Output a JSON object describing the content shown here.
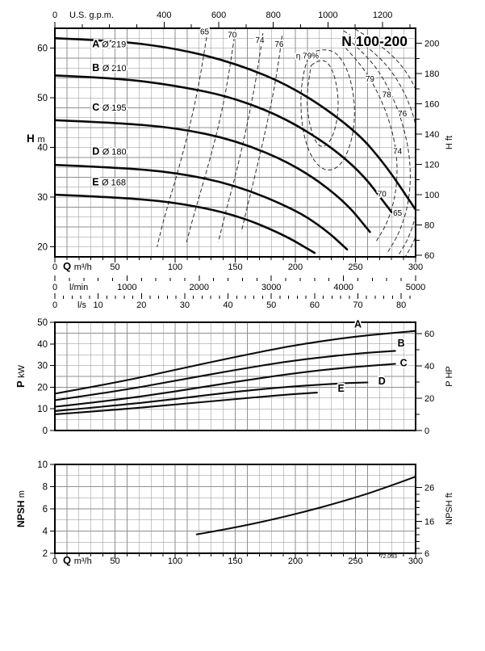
{
  "title": "N 100-200",
  "figure_code": "72.033",
  "colors": {
    "background": "#ffffff",
    "curve": "#0a0a0a",
    "grid": "#8f8f8f",
    "frame": "#000000",
    "contour": "#2a2a2a"
  },
  "chart_data": [
    {
      "type": "line",
      "name": "head-capacity",
      "title": "N 100-200",
      "x": {
        "label": "Q",
        "unit": "m³/h",
        "range": [
          0,
          300
        ],
        "ticks": [
          0,
          50,
          100,
          150,
          200,
          250,
          300
        ],
        "minor_step": 10
      },
      "x_top": {
        "label": "U.S. g.p.m.",
        "ticks": [
          0,
          400,
          600,
          800,
          1000,
          1200
        ],
        "minor_step": 100,
        "max": 1300,
        "to_primary": 0.22712
      },
      "x_bottom2": {
        "label": "l/min",
        "ticks": [
          0,
          1000,
          2000,
          3000,
          4000,
          5000
        ],
        "minor_step": 200,
        "max": 5000,
        "to_primary": 0.06
      },
      "x_bottom3": {
        "label": "l/s",
        "ticks": [
          0,
          10,
          20,
          30,
          40,
          50,
          60,
          70,
          80
        ],
        "minor_step": 2,
        "max": 82,
        "to_primary": 3.6
      },
      "y": {
        "label": "H",
        "unit": "m",
        "range": [
          18,
          64
        ],
        "ticks": [
          20,
          30,
          40,
          50,
          60
        ],
        "grid_step": 2
      },
      "y_right": {
        "label": "H",
        "unit": "ft",
        "ticks": [
          60,
          80,
          100,
          120,
          140,
          160,
          180,
          200
        ],
        "minor_step": 10,
        "min": 60,
        "max": 200,
        "to_primary": 0.3048
      },
      "series": [
        {
          "name": "A",
          "label": "A",
          "sublabel": "Ø 219",
          "label_pos": [
            31,
            60.2
          ],
          "points": [
            [
              0,
              62
            ],
            [
              50,
              61.5
            ],
            [
              100,
              60
            ],
            [
              150,
              57
            ],
            [
              200,
              52
            ],
            [
              250,
              43.5
            ],
            [
              275,
              36.5
            ],
            [
              300,
              27.5
            ]
          ]
        },
        {
          "name": "B",
          "label": "B",
          "sublabel": "Ø 210",
          "label_pos": [
            31,
            55.4
          ],
          "points": [
            [
              0,
              54.5
            ],
            [
              50,
              54
            ],
            [
              100,
              52.5
            ],
            [
              150,
              50
            ],
            [
              200,
              45
            ],
            [
              250,
              36.5
            ],
            [
              280,
              27
            ]
          ]
        },
        {
          "name": "C",
          "label": "C",
          "sublabel": "Ø 195",
          "label_pos": [
            31,
            47.4
          ],
          "points": [
            [
              0,
              45.5
            ],
            [
              50,
              45
            ],
            [
              100,
              44
            ],
            [
              150,
              41.5
            ],
            [
              200,
              36.5
            ],
            [
              240,
              29.5
            ],
            [
              262,
              23
            ]
          ]
        },
        {
          "name": "D",
          "label": "D",
          "sublabel": "Ø 180",
          "label_pos": [
            31,
            38.6
          ],
          "points": [
            [
              0,
              36.5
            ],
            [
              50,
              36
            ],
            [
              100,
              35
            ],
            [
              150,
              32.5
            ],
            [
              200,
              27.5
            ],
            [
              225,
              23.5
            ],
            [
              243,
              19.5
            ]
          ]
        },
        {
          "name": "E",
          "label": "E",
          "sublabel": "Ø 168",
          "label_pos": [
            31,
            32.4
          ],
          "points": [
            [
              0,
              30.5
            ],
            [
              50,
              30
            ],
            [
              100,
              29
            ],
            [
              150,
              26.5
            ],
            [
              190,
              22.5
            ],
            [
              216,
              18.8
            ]
          ]
        }
      ],
      "efficiency_contours": [
        {
          "eta": 65,
          "branch": "left",
          "points": [
            [
              127,
              63.5
            ],
            [
              121,
              54
            ],
            [
              112,
              44
            ],
            [
              101,
              34
            ],
            [
              91,
              26
            ],
            [
              85,
              20
            ]
          ]
        },
        {
          "eta": 70,
          "branch": "left",
          "points": [
            [
              150,
              63.5
            ],
            [
              145,
              55
            ],
            [
              137,
              45
            ],
            [
              126,
              35
            ],
            [
              115,
              26
            ],
            [
              109,
              20.5
            ]
          ]
        },
        {
          "eta": 74,
          "branch": "left",
          "points": [
            [
              173,
              63
            ],
            [
              169,
              56
            ],
            [
              162,
              47
            ],
            [
              153,
              37
            ],
            [
              142,
              27
            ],
            [
              136,
              21
            ]
          ]
        },
        {
          "eta": 76,
          "branch": "left",
          "points": [
            [
              189,
              62.5
            ],
            [
              186,
              57
            ],
            [
              181,
              50
            ],
            [
              173,
              41
            ],
            [
              162,
              30
            ],
            [
              155,
              23
            ]
          ]
        },
        {
          "eta": 79,
          "branch": "loop",
          "points": [
            [
              213,
              56.5
            ],
            [
              221,
              58
            ],
            [
              230,
              56.5
            ],
            [
              236,
              51
            ],
            [
              235,
              45
            ],
            [
              228,
              40.5
            ],
            [
              219,
              40
            ],
            [
              212,
              44
            ],
            [
              209,
              50
            ],
            [
              213,
              56.5
            ]
          ]
        },
        {
          "eta": 78,
          "branch": "loop",
          "points": [
            [
              212,
              59
            ],
            [
              228,
              60.5
            ],
            [
              243,
              56.5
            ],
            [
              250,
              49
            ],
            [
              248,
              42
            ],
            [
              239,
              36.5
            ],
            [
              226,
              35
            ],
            [
              214,
              37.5
            ],
            [
              206,
              43
            ],
            [
              204,
              50
            ],
            [
              207,
              55.5
            ],
            [
              212,
              59
            ]
          ]
        },
        {
          "eta": 76,
          "branch": "right",
          "points": [
            [
              238,
              61
            ],
            [
              254,
              57
            ],
            [
              268,
              51.5
            ],
            [
              279,
              45
            ],
            [
              285,
              38
            ],
            [
              284,
              31
            ],
            [
              277,
              25
            ],
            [
              267,
              21
            ]
          ]
        },
        {
          "eta": 74,
          "branch": "right",
          "points": [
            [
              243,
              62
            ],
            [
              262,
              58
            ],
            [
              278,
              52
            ],
            [
              290,
              44.5
            ],
            [
              296,
              37
            ],
            [
              295,
              29.5
            ],
            [
              287,
              23
            ],
            [
              277,
              19
            ]
          ]
        },
        {
          "eta": 70,
          "branch": "right",
          "points": [
            [
              240,
              63.5
            ],
            [
              263,
              60
            ],
            [
              285,
              54
            ],
            [
              299,
              46.5
            ],
            [
              305,
              38
            ],
            [
              304,
              30
            ],
            [
              296,
              22.5
            ],
            [
              285,
              18
            ]
          ]
        },
        {
          "eta": 65,
          "branch": "right",
          "points": [
            [
              245,
              64.5
            ],
            [
              270,
              61
            ],
            [
              293,
              55.5
            ],
            [
              307,
              48
            ],
            [
              312,
              39
            ],
            [
              310,
              30.5
            ],
            [
              301,
              22
            ],
            [
              289,
              17
            ]
          ]
        }
      ],
      "efficiency_labels": [
        {
          "text": "65",
          "pos": [
            124.5,
            62.8
          ]
        },
        {
          "text": "70",
          "pos": [
            147.5,
            62.1
          ]
        },
        {
          "text": "74",
          "pos": [
            170.5,
            61.1
          ]
        },
        {
          "text": "76",
          "pos": [
            186.5,
            60.3
          ]
        },
        {
          "text": "η 79%",
          "pos": [
            210,
            57.9
          ]
        },
        {
          "text": "79",
          "pos": [
            262,
            53.3
          ]
        },
        {
          "text": "78",
          "pos": [
            276,
            50.1
          ]
        },
        {
          "text": "76",
          "pos": [
            289,
            46.3
          ]
        },
        {
          "text": "74",
          "pos": [
            285,
            38.7
          ]
        },
        {
          "text": "70",
          "pos": [
            272,
            30.1
          ]
        },
        {
          "text": "65",
          "pos": [
            285,
            26.3
          ]
        }
      ]
    },
    {
      "type": "line",
      "name": "power",
      "x": {
        "range": [
          0,
          300
        ],
        "minor_step": 10
      },
      "y": {
        "label": "P",
        "unit": "kW",
        "range": [
          0,
          50
        ],
        "ticks": [
          0,
          10,
          20,
          30,
          40,
          50
        ],
        "grid_step": 5
      },
      "y_right": {
        "label": "P",
        "unit": "HP",
        "ticks": [
          0,
          20,
          40,
          60
        ],
        "minor_step": 10,
        "min": 0,
        "max": 60,
        "to_primary": 0.7457
      },
      "series": [
        {
          "name": "A",
          "label_pos": [
            252,
            47.6
          ],
          "points": [
            [
              0,
              17
            ],
            [
              50,
              22
            ],
            [
              100,
              28
            ],
            [
              150,
              34
            ],
            [
              200,
              39.5
            ],
            [
              250,
              43.5
            ],
            [
              300,
              46
            ]
          ]
        },
        {
          "name": "B",
          "label_pos": [
            288,
            38.8
          ],
          "points": [
            [
              0,
              14
            ],
            [
              50,
              18
            ],
            [
              100,
              23
            ],
            [
              150,
              28
            ],
            [
              200,
              32.5
            ],
            [
              250,
              35.5
            ],
            [
              283,
              36.8
            ]
          ]
        },
        {
          "name": "C",
          "label_pos": [
            290,
            29.6
          ],
          "points": [
            [
              0,
              11
            ],
            [
              50,
              14
            ],
            [
              100,
              18
            ],
            [
              150,
              22.5
            ],
            [
              200,
              26.5
            ],
            [
              240,
              29
            ],
            [
              283,
              30.8
            ]
          ]
        },
        {
          "name": "D",
          "label_pos": [
            272,
            21.2
          ],
          "points": [
            [
              0,
              9
            ],
            [
              50,
              11.5
            ],
            [
              100,
              14.5
            ],
            [
              150,
              18
            ],
            [
              200,
              20.5
            ],
            [
              245,
              22
            ],
            [
              260,
              22.2
            ]
          ]
        },
        {
          "name": "E",
          "label_pos": [
            238,
            18
          ],
          "points": [
            [
              0,
              7.5
            ],
            [
              50,
              9.5
            ],
            [
              100,
              12
            ],
            [
              150,
              14.5
            ],
            [
              190,
              16.5
            ],
            [
              218,
              17.5
            ]
          ]
        }
      ]
    },
    {
      "type": "line",
      "name": "npsh",
      "x": {
        "label": "Q",
        "unit": "m³/h",
        "range": [
          0,
          300
        ],
        "ticks": [
          0,
          50,
          100,
          150,
          200,
          250,
          300
        ],
        "minor_step": 10
      },
      "y": {
        "label": "NPSH",
        "unit": "m",
        "range": [
          2,
          10
        ],
        "ticks": [
          2,
          4,
          6,
          8,
          10
        ],
        "grid_step": 1
      },
      "y_right": {
        "label": "NPSH",
        "unit": "ft",
        "ticks": [
          6,
          16,
          26
        ],
        "minor_step": 2,
        "min": 6,
        "max": 26,
        "to_primary": 0.3048
      },
      "series": [
        {
          "name": "NPSH",
          "points": [
            [
              118,
              3.7
            ],
            [
              150,
              4.3
            ],
            [
              200,
              5.5
            ],
            [
              250,
              7
            ],
            [
              280,
              8.1
            ],
            [
              300,
              8.9
            ]
          ]
        }
      ]
    }
  ]
}
